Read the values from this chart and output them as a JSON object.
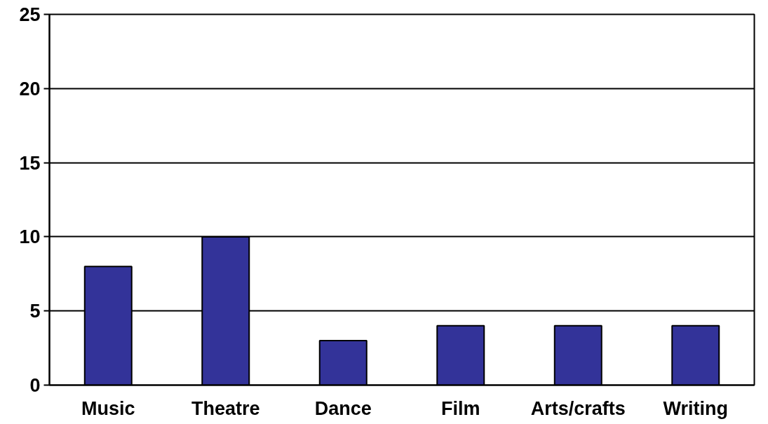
{
  "chart_data": {
    "type": "bar",
    "categories": [
      "Music",
      "Theatre",
      "Dance",
      "Film",
      "Arts/crafts",
      "Writing"
    ],
    "values": [
      8,
      10,
      3,
      4,
      4,
      4
    ],
    "color": "#333399",
    "ylim": [
      0,
      25
    ],
    "yticks": [
      0,
      5,
      10,
      15,
      20,
      25
    ],
    "grid": "y"
  }
}
